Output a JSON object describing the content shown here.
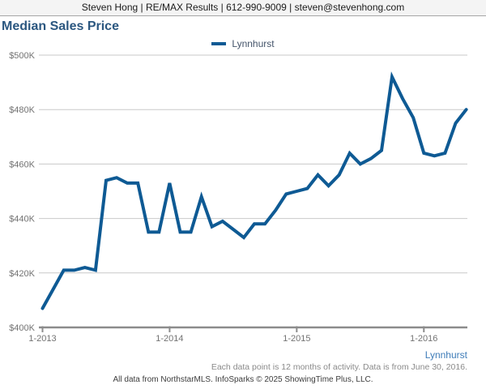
{
  "header": {
    "contact_line": "Steven Hong | RE/MAX Results | 612-990-9009 | steven@stevenhong.com"
  },
  "legend": {
    "label": "Lynnhurst"
  },
  "chart_data": {
    "type": "line",
    "title": "Median Sales Price",
    "xlabel": "",
    "ylabel": "",
    "unit": "USD thousands",
    "ylim": [
      400,
      500
    ],
    "grid": "horizontal",
    "legend_position": "top-center",
    "x": [
      "2013-01",
      "2013-02",
      "2013-03",
      "2013-04",
      "2013-05",
      "2013-06",
      "2013-07",
      "2013-08",
      "2013-09",
      "2013-10",
      "2013-11",
      "2013-12",
      "2014-01",
      "2014-02",
      "2014-03",
      "2014-04",
      "2014-05",
      "2014-06",
      "2014-07",
      "2014-08",
      "2014-09",
      "2014-10",
      "2014-11",
      "2014-12",
      "2015-01",
      "2015-02",
      "2015-03",
      "2015-04",
      "2015-05",
      "2015-06",
      "2015-07",
      "2015-08",
      "2015-09",
      "2015-10",
      "2015-11",
      "2015-12",
      "2016-01",
      "2016-02",
      "2016-03",
      "2016-04",
      "2016-05"
    ],
    "series": [
      {
        "name": "Lynnhurst",
        "values": [
          407,
          414,
          421,
          421,
          422,
          421,
          454,
          455,
          453,
          453,
          435,
          435,
          453,
          435,
          435,
          448,
          437,
          439,
          436,
          433,
          438,
          438,
          443,
          449,
          450,
          451,
          456,
          452,
          456,
          464,
          460,
          462,
          465,
          492,
          484,
          477,
          464,
          463,
          464,
          475,
          480
        ]
      }
    ],
    "y_ticks": [
      {
        "label": "$400K",
        "value": 400
      },
      {
        "label": "$420K",
        "value": 420
      },
      {
        "label": "$440K",
        "value": 440
      },
      {
        "label": "$460K",
        "value": 460
      },
      {
        "label": "$480K",
        "value": 480
      },
      {
        "label": "$500K",
        "value": 500
      }
    ],
    "x_ticks": [
      {
        "label": "1-2013",
        "index": 0
      },
      {
        "label": "1-2014",
        "index": 12
      },
      {
        "label": "1-2015",
        "index": 24
      },
      {
        "label": "1-2016",
        "index": 36
      }
    ]
  },
  "footnotes": {
    "series_label": "Lynnhurst",
    "note": "Each data point is 12 months of activity. Data is from June 30, 2016.",
    "attribution": "All data from NorthstarMLS. InfoSparks © 2025 ShowingTime Plus, LLC."
  },
  "colors": {
    "line": "#0e5a94",
    "title": "#2b5780",
    "legend_text": "#44546a",
    "axis_text": "#737373",
    "gridline": "#c9c9c9",
    "axis_line": "#8c8c8c",
    "bottom_label_blue": "#3e7cb8"
  }
}
